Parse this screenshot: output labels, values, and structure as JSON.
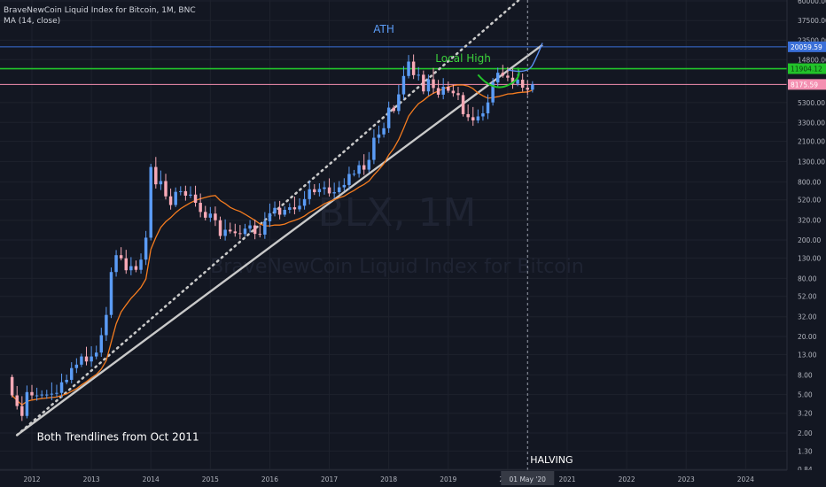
{
  "header": {
    "title": "BraveNewCoin Liquid Index for Bitcoin, 1M, BNC",
    "indicator": "MA (14, close)"
  },
  "watermark": {
    "symbol": "BLX, 1M",
    "name": "BraveNewCoin Liquid Index for Bitcoin"
  },
  "colors": {
    "background": "#131722",
    "up": "#5b9cf6",
    "down": "#f7a9b6",
    "ma": "#f57c1f",
    "trendline": "#c9c9c9",
    "ath_line": "#3a6fd8",
    "local_high_line": "#22c32a",
    "price_line": "#f48fb1"
  },
  "chart_data": {
    "type": "candlestick",
    "y_scale": "log",
    "ylim": [
      0.84,
      60000
    ],
    "x_range": [
      "2011-09",
      "2024-12"
    ],
    "x_ticks": [
      "2012",
      "2013",
      "2014",
      "2015",
      "2016",
      "2017",
      "2018",
      "2019",
      "2020",
      "2021",
      "2022",
      "2023",
      "2024"
    ],
    "y_ticks": [
      "60000.00",
      "37500.00",
      "23500.00",
      "14800.00",
      "5300.00",
      "3300.00",
      "2100.00",
      "1300.00",
      "800.00",
      "520.00",
      "320.00",
      "200.00",
      "130.00",
      "80.00",
      "52.00",
      "32.00",
      "20.00",
      "13.00",
      "8.00",
      "5.00",
      "3.20",
      "2.00",
      "1.30",
      "0.84"
    ],
    "price_labels": [
      {
        "value": 20059.59,
        "text": "20059.59",
        "color": "#3a6fd8"
      },
      {
        "value": 11904.12,
        "text": "11904.12",
        "color": "#22c32a"
      },
      {
        "value": 8175.59,
        "text": "8175.59",
        "color": "#f48fb1"
      }
    ],
    "candles_close": [
      4.9,
      3.8,
      3.0,
      5.3,
      4.9,
      4.9,
      5.0,
      5.0,
      5.1,
      5.2,
      6.7,
      7.1,
      9.4,
      10.2,
      12.4,
      11.0,
      12.4,
      13.6,
      20.6,
      33.4,
      93.0,
      139.0,
      129.0,
      97.0,
      107.0,
      98.0,
      125.0,
      211.0,
      1140.0,
      754.0,
      815.0,
      566.0,
      460.0,
      630.0,
      640.0,
      575.0,
      590.0,
      485.0,
      390.0,
      340.0,
      375.0,
      320.0,
      220.0,
      255.0,
      245.0,
      235.0,
      230.0,
      262.0,
      283.0,
      231.0,
      227.0,
      312.0,
      378.0,
      430.0,
      365.0,
      410.0,
      436.0,
      415.0,
      452.0,
      530.0,
      670.0,
      625.0,
      675.0,
      701.0,
      607.0,
      625.0,
      702.0,
      742.0,
      965.0,
      970.0,
      1190.0,
      1070.0,
      1350.0,
      2290.0,
      2480.0,
      2875.0,
      4700.0,
      4340.0,
      6450.0,
      10000.0,
      14100.0,
      10200.0,
      10300.0,
      6920.0,
      9240.0,
      7500.0,
      6400.0,
      7730.0,
      7030.0,
      6630.0,
      6340.0,
      4020.0,
      3740.0,
      3460.0,
      3810.0,
      4100.0,
      5320.0,
      8560.0,
      10800.0,
      10080.0,
      9600.0,
      8300.0,
      9150.0,
      7560.0,
      7200.0,
      8175.59
    ],
    "trendlines": [
      {
        "name": "solid",
        "from": {
          "date": "2011-10",
          "value": 1.9
        },
        "to": {
          "date": "2020-08",
          "value": 21000
        }
      },
      {
        "name": "dotted",
        "from": {
          "date": "2011-10",
          "value": 1.9
        },
        "to": {
          "date": "2020-07",
          "value": 90000
        }
      }
    ],
    "halving": {
      "date": "2020-05",
      "label": "HALVING",
      "date_label": "01 May '20"
    },
    "annotations": [
      {
        "text": "ATH",
        "date": "2017-12",
        "value": 28000,
        "color": "#5b9cf6"
      },
      {
        "text": "Local High",
        "date": "2019-04",
        "value": 14000,
        "color": "#3bd13b"
      },
      {
        "text": "Both Trendlines from Oct 2011",
        "date": "2012-02",
        "value": 1.9,
        "color": "#ffffff"
      }
    ]
  }
}
